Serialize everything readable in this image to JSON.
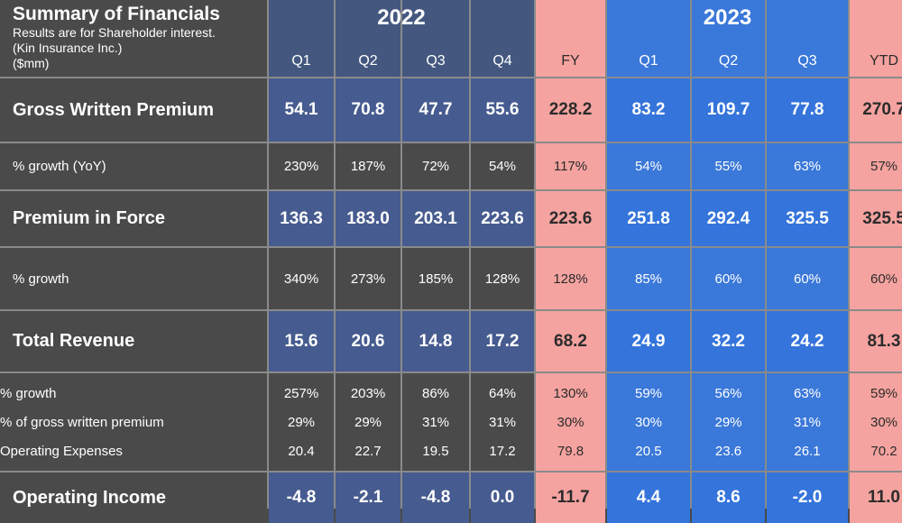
{
  "header": {
    "title": "Summary of Financials",
    "subtitle_lines": [
      "Results are for Shareholder interest.",
      "(Kin Insurance Inc.)",
      "($mm)"
    ],
    "year_2022": "2022",
    "year_2023": "2023",
    "columns": [
      "Q1",
      "Q2",
      "Q3",
      "Q4",
      "FY",
      "Q1",
      "Q2",
      "Q3",
      "YTD"
    ]
  },
  "rows": {
    "gwp": {
      "label": "Gross Written Premium",
      "values": [
        "54.1",
        "70.8",
        "47.7",
        "55.6",
        "228.2",
        "83.2",
        "109.7",
        "77.8",
        "270.7"
      ]
    },
    "gwp_growth": {
      "label": "% growth (YoY)",
      "values": [
        "230%",
        "187%",
        "72%",
        "54%",
        "117%",
        "54%",
        "55%",
        "63%",
        "57%"
      ]
    },
    "pif": {
      "label": "Premium in Force",
      "values": [
        "136.3",
        "183.0",
        "203.1",
        "223.6",
        "223.6",
        "251.8",
        "292.4",
        "325.5",
        "325.5"
      ]
    },
    "pif_growth": {
      "label": "% growth",
      "values": [
        "340%",
        "273%",
        "185%",
        "128%",
        "128%",
        "85%",
        "60%",
        "60%",
        "60%"
      ]
    },
    "revenue": {
      "label": "Total Revenue",
      "values": [
        "15.6",
        "20.6",
        "14.8",
        "17.2",
        "68.2",
        "24.9",
        "32.2",
        "24.2",
        "81.3"
      ]
    },
    "rev_growth": {
      "label": "% growth",
      "values": [
        "257%",
        "203%",
        "86%",
        "64%",
        "130%",
        "59%",
        "56%",
        "63%",
        "59%"
      ]
    },
    "rev_pct_gwp": {
      "label": "% of gross written premium",
      "values": [
        "29%",
        "29%",
        "31%",
        "31%",
        "30%",
        "30%",
        "29%",
        "31%",
        "30%"
      ]
    },
    "opex": {
      "label": "Operating Expenses",
      "values": [
        "20.4",
        "22.7",
        "19.5",
        "17.2",
        "79.8",
        "20.5",
        "23.6",
        "26.1",
        "70.2"
      ]
    },
    "op_income": {
      "label": "Operating Income",
      "values": [
        "-4.8",
        "-2.1",
        "-4.8",
        "0.0",
        "-11.7",
        "4.4",
        "8.6",
        "-2.0",
        "11.0"
      ]
    }
  }
}
